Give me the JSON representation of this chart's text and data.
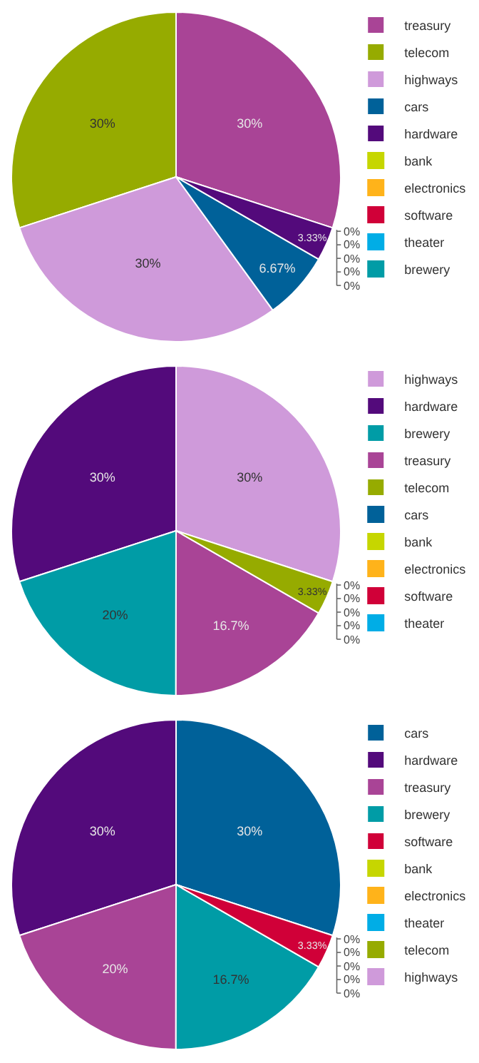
{
  "chart_data": [
    {
      "type": "pie",
      "legend": "right",
      "categories": [
        "treasury",
        "telecom",
        "highways",
        "cars",
        "hardware",
        "bank",
        "electronics",
        "software",
        "theater",
        "brewery"
      ],
      "values": [
        30,
        30,
        30,
        6.67,
        3.33,
        0,
        0,
        0,
        0,
        0
      ],
      "colors": [
        "#a94496",
        "#96ab00",
        "#cf9ada",
        "#006199",
        "#530a7b",
        "#c6d600",
        "#ffb31a",
        "#d00038",
        "#00ade6",
        "#009ca6"
      ],
      "value_labels": [
        "30%",
        "30%",
        "30%",
        "6.67%",
        "3.33%",
        "0%",
        "0%",
        "0%",
        "0%",
        "0%"
      ]
    },
    {
      "type": "pie",
      "legend": "right",
      "categories": [
        "highways",
        "hardware",
        "brewery",
        "treasury",
        "telecom",
        "cars",
        "bank",
        "electronics",
        "software",
        "theater"
      ],
      "values": [
        30,
        30,
        20,
        16.7,
        3.33,
        0,
        0,
        0,
        0,
        0
      ],
      "colors": [
        "#cf9ada",
        "#530a7b",
        "#009ca6",
        "#a94496",
        "#96ab00",
        "#006199",
        "#c6d600",
        "#ffb31a",
        "#d00038",
        "#00ade6"
      ],
      "value_labels": [
        "30%",
        "30%",
        "20%",
        "16.7%",
        "3.33%",
        "0%",
        "0%",
        "0%",
        "0%",
        "0%"
      ]
    },
    {
      "type": "pie",
      "legend": "right",
      "categories": [
        "cars",
        "hardware",
        "treasury",
        "brewery",
        "software",
        "bank",
        "electronics",
        "theater",
        "telecom",
        "highways"
      ],
      "values": [
        30,
        30,
        20,
        16.7,
        3.33,
        0,
        0,
        0,
        0,
        0
      ],
      "colors": [
        "#006199",
        "#530a7b",
        "#a94496",
        "#009ca6",
        "#d00038",
        "#c6d600",
        "#ffb31a",
        "#00ade6",
        "#96ab00",
        "#cf9ada"
      ],
      "value_labels": [
        "30%",
        "30%",
        "20%",
        "16.7%",
        "3.33%",
        "0%",
        "0%",
        "0%",
        "0%",
        "0%"
      ]
    }
  ]
}
